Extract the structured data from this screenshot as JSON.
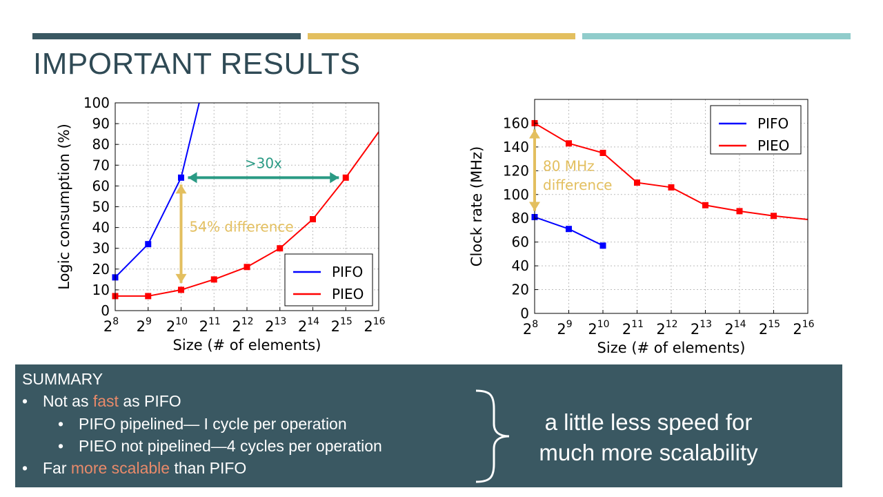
{
  "slide": {
    "title": "IMPORTANT RESULTS",
    "accent_colors": [
      "#3a5862",
      "#e3bf5f",
      "#90cccb"
    ]
  },
  "chart_data": [
    {
      "type": "line",
      "ylabel": "Logic consumption (%)",
      "xlabel": "Size (# of elements)",
      "x_base": "2",
      "x": [
        8,
        9,
        10,
        11,
        12,
        13,
        14,
        15,
        16
      ],
      "xticks": [
        "8",
        "9",
        "10",
        "11",
        "12",
        "13",
        "14",
        "15",
        "16"
      ],
      "ylim": [
        0,
        100
      ],
      "yticks": [
        "0",
        "10",
        "20",
        "30",
        "40",
        "50",
        "60",
        "70",
        "80",
        "90",
        "100"
      ],
      "grid": true,
      "legend_position": "bottom-right",
      "series": [
        {
          "name": "PIFO",
          "color": "#0000ff",
          "points": [
            [
              8,
              16
            ],
            [
              9,
              32
            ],
            [
              10,
              64
            ]
          ],
          "trend": [
            [
              10,
              64
            ],
            [
              10.55,
              100
            ]
          ]
        },
        {
          "name": "PIEO",
          "color": "#ff0000",
          "points": [
            [
              8,
              7
            ],
            [
              9,
              7
            ],
            [
              10,
              10
            ],
            [
              11,
              15
            ],
            [
              12,
              21
            ],
            [
              13,
              30
            ],
            [
              14,
              44
            ],
            [
              15,
              64
            ]
          ],
          "trend": [
            [
              15,
              64
            ],
            [
              16,
              86
            ]
          ]
        }
      ],
      "annotations": [
        {
          "text": ">30x",
          "color": "#2a9a84"
        },
        {
          "text": "54% difference",
          "color": "#e3bf5f"
        }
      ]
    },
    {
      "type": "line",
      "ylabel": "Clock rate (MHz)",
      "xlabel": "Size (# of elements)",
      "x_base": "2",
      "x": [
        8,
        9,
        10,
        11,
        12,
        13,
        14,
        15,
        16
      ],
      "xticks": [
        "8",
        "9",
        "10",
        "11",
        "12",
        "13",
        "14",
        "15",
        "16"
      ],
      "ylim": [
        0,
        180
      ],
      "yticks": [
        "0",
        "20",
        "40",
        "60",
        "80",
        "100",
        "120",
        "140",
        "160"
      ],
      "grid": true,
      "legend_position": "top-right",
      "series": [
        {
          "name": "PIFO",
          "color": "#0000ff",
          "points": [
            [
              8,
              81
            ],
            [
              9,
              71
            ],
            [
              10,
              57
            ]
          ],
          "trend": []
        },
        {
          "name": "PIEO",
          "color": "#ff0000",
          "points": [
            [
              8,
              160
            ],
            [
              9,
              143
            ],
            [
              10,
              135
            ],
            [
              11,
              110
            ],
            [
              12,
              106
            ],
            [
              13,
              91
            ],
            [
              14,
              86
            ],
            [
              15,
              82
            ]
          ],
          "trend": [
            [
              15,
              82
            ],
            [
              16,
              79
            ]
          ]
        }
      ],
      "annotations": [
        {
          "text": "80 MHz",
          "color": "#e3bf5f"
        },
        {
          "text": "difference",
          "color": "#e3bf5f"
        }
      ]
    }
  ],
  "summary": {
    "heading": "SUMMARY",
    "bullet_char": "•",
    "b1_pre": "Not as ",
    "b1_hl": "fast",
    "b1_post": " as PIFO",
    "b2": "PIFO pipelined— I cycle per operation",
    "b3": "PIEO not pipelined—4 cycles per operation",
    "b4_pre": "Far ",
    "b4_hl": "more scalable",
    "b4_post": " than PIFO",
    "highlight_color": "#e98a6a",
    "tagline_line1": "a little less speed for",
    "tagline_line2": "much more scalability"
  }
}
